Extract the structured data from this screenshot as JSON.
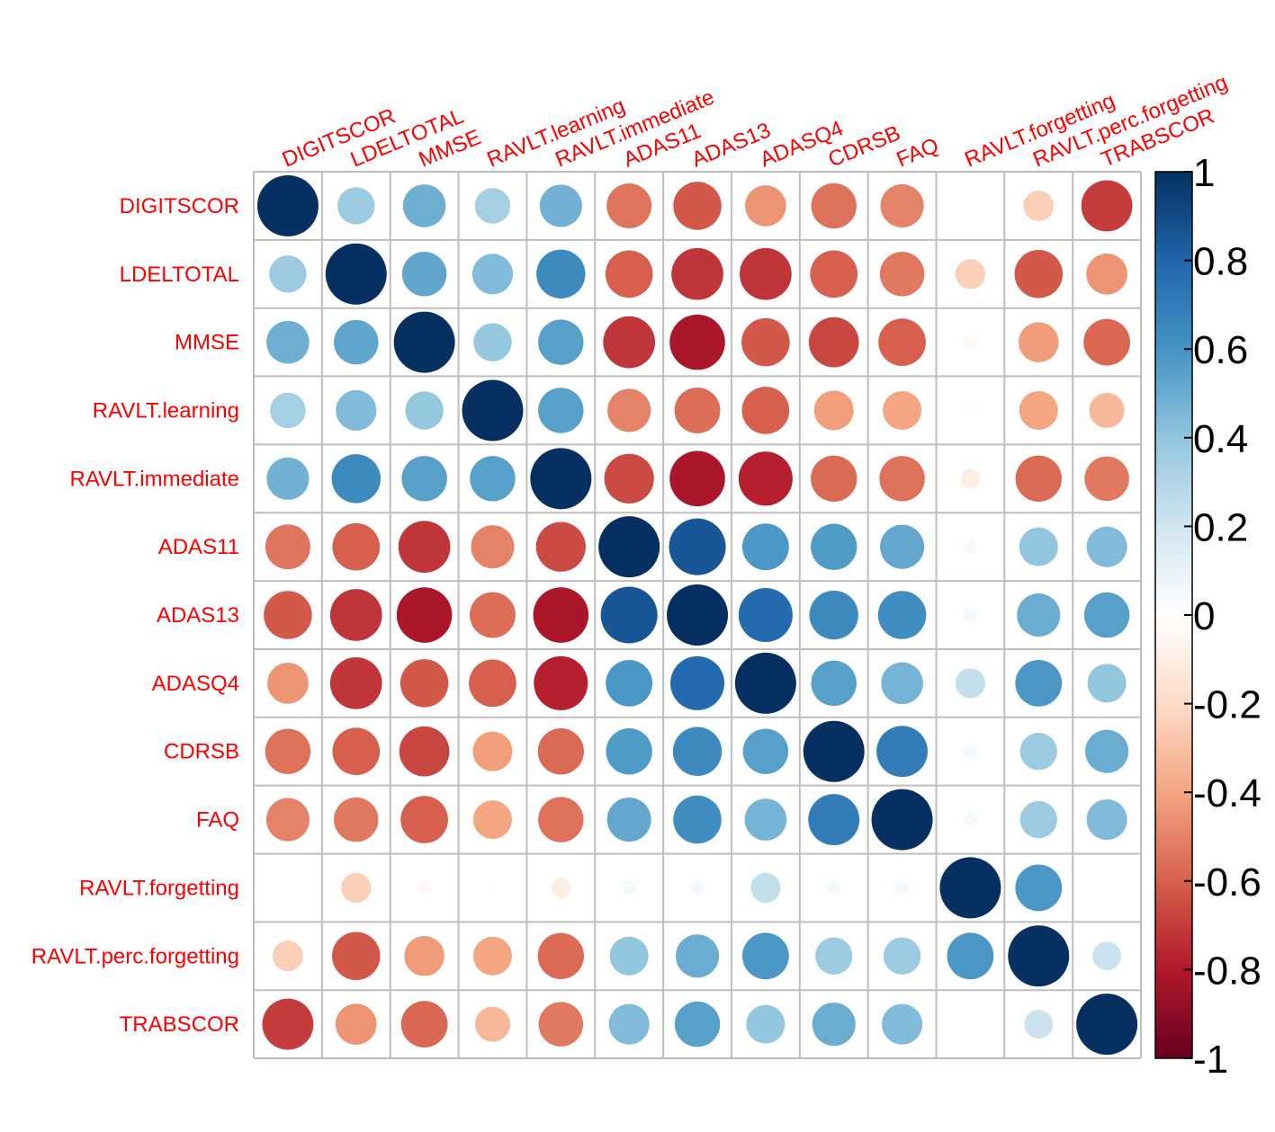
{
  "chart_data": {
    "type": "heatmap",
    "style": "correlation-circles",
    "variables": [
      "DIGITSCOR",
      "LDELTOTAL",
      "MMSE",
      "RAVLT.learning",
      "RAVLT.immediate",
      "ADAS11",
      "ADAS13",
      "ADASQ4",
      "CDRSB",
      "FAQ",
      "RAVLT.forgetting",
      "RAVLT.perc.forgetting",
      "TRABSCOR"
    ],
    "matrix": [
      [
        1,
        0.37,
        0.49,
        0.34,
        0.48,
        -0.54,
        -0.62,
        -0.45,
        -0.55,
        -0.5,
        0.0,
        -0.25,
        -0.7
      ],
      [
        0.37,
        1,
        0.53,
        0.44,
        0.64,
        -0.6,
        -0.72,
        -0.72,
        -0.6,
        -0.53,
        -0.24,
        -0.62,
        -0.45
      ],
      [
        0.49,
        0.53,
        1,
        0.39,
        0.55,
        -0.72,
        -0.82,
        -0.62,
        -0.67,
        -0.6,
        -0.04,
        -0.43,
        -0.58
      ],
      [
        0.34,
        0.44,
        0.39,
        1,
        0.55,
        -0.5,
        -0.56,
        -0.6,
        -0.42,
        -0.4,
        -0.01,
        -0.4,
        -0.33
      ],
      [
        0.48,
        0.64,
        0.55,
        0.55,
        1,
        -0.66,
        -0.82,
        -0.78,
        -0.57,
        -0.55,
        -0.1,
        -0.57,
        -0.53
      ],
      [
        -0.54,
        -0.6,
        -0.72,
        -0.5,
        -0.66,
        1,
        0.86,
        0.58,
        0.57,
        0.52,
        0.05,
        0.4,
        0.44
      ],
      [
        -0.62,
        -0.72,
        -0.82,
        -0.56,
        -0.82,
        0.86,
        1,
        0.78,
        0.64,
        0.62,
        0.05,
        0.5,
        0.55
      ],
      [
        -0.45,
        -0.72,
        -0.62,
        -0.6,
        -0.78,
        0.58,
        0.78,
        1,
        0.55,
        0.47,
        0.24,
        0.58,
        0.4
      ],
      [
        -0.55,
        -0.6,
        -0.67,
        -0.42,
        -0.57,
        0.57,
        0.64,
        0.55,
        1,
        0.7,
        0.05,
        0.37,
        0.5
      ],
      [
        -0.5,
        -0.53,
        -0.6,
        -0.4,
        -0.55,
        0.52,
        0.62,
        0.47,
        0.7,
        1,
        0.05,
        0.37,
        0.44
      ],
      [
        0.0,
        -0.24,
        -0.04,
        -0.01,
        -0.1,
        0.05,
        0.05,
        0.24,
        0.05,
        0.05,
        1,
        0.58,
        0.0
      ],
      [
        -0.25,
        -0.62,
        -0.43,
        -0.4,
        -0.57,
        0.4,
        0.5,
        0.58,
        0.37,
        0.37,
        0.58,
        1,
        0.22
      ],
      [
        -0.7,
        -0.45,
        -0.58,
        -0.33,
        -0.53,
        0.44,
        0.55,
        0.4,
        0.5,
        0.44,
        0.0,
        0.22,
        1
      ]
    ],
    "colorbar": {
      "range": [
        -1,
        1
      ],
      "ticks": [
        "1",
        "0.8",
        "0.6",
        "0.4",
        "0.2",
        "0",
        "-0.2",
        "-0.4",
        "-0.6",
        "-0.8",
        "-1"
      ],
      "colors": [
        "#67001F",
        "#B2182B",
        "#D6604D",
        "#F4A582",
        "#FDDBC7",
        "#FFFFFF",
        "#D1E5F0",
        "#92C5DE",
        "#4393C3",
        "#2166AC",
        "#053061"
      ]
    },
    "label_color": "#FF0000",
    "grid_color": "#BEBEBE"
  }
}
